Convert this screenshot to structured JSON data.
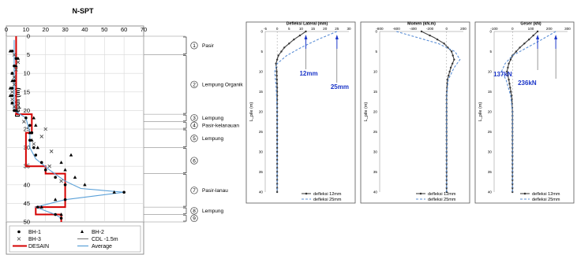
{
  "colors": {
    "desain": "#d40000",
    "average": "#5aa0d8",
    "profile": "#000000",
    "deflection_25": "#5b8fd6",
    "deflection_12": "#444444",
    "annotation": "#1a35c8",
    "guide": "#8a8a8a"
  },
  "chart_data": [
    {
      "type": "scatter",
      "title": "N-SPT",
      "ylabel": "Depth (m)",
      "xlim": [
        0,
        70
      ],
      "ylim": [
        50,
        0
      ],
      "xticks": [
        0,
        10,
        20,
        30,
        40,
        50,
        60,
        70
      ],
      "yticks": [
        0,
        5,
        10,
        15,
        20,
        25,
        30,
        35,
        40,
        45,
        50
      ],
      "grid": true,
      "legend_position": "bottom",
      "legend": [
        "BH-1",
        "BH-2",
        "BH-3",
        "CDL -1.5m",
        "DESAIN",
        "Average"
      ],
      "series": [
        {
          "name": "BH-1",
          "marker": "dot",
          "points": [
            [
              3,
              4
            ],
            [
              5,
              6
            ],
            [
              4,
              8
            ],
            [
              3,
              10
            ],
            [
              4,
              12
            ],
            [
              3,
              14
            ],
            [
              3,
              16
            ],
            [
              3,
              18
            ],
            [
              4,
              20
            ],
            [
              10,
              22
            ],
            [
              12,
              24
            ],
            [
              13,
              26
            ],
            [
              12,
              28
            ],
            [
              14,
              30
            ],
            [
              15,
              32
            ],
            [
              18,
              34
            ],
            [
              20,
              36
            ],
            [
              25,
              38
            ],
            [
              30,
              40
            ],
            [
              60,
              42
            ],
            [
              30,
              44
            ],
            [
              16,
              46
            ],
            [
              25,
              48
            ],
            [
              28,
              49
            ]
          ]
        },
        {
          "name": "BH-2",
          "marker": "triangle",
          "points": [
            [
              2,
              4
            ],
            [
              6,
              6
            ],
            [
              5,
              8
            ],
            [
              3,
              10
            ],
            [
              3,
              12
            ],
            [
              2,
              14
            ],
            [
              2,
              16
            ],
            [
              3,
              18
            ],
            [
              5,
              20
            ],
            [
              14,
              22
            ],
            [
              15,
              24
            ],
            [
              12,
              26
            ],
            [
              13,
              28
            ],
            [
              16,
              30
            ],
            [
              33,
              32
            ],
            [
              28,
              34
            ],
            [
              30,
              36
            ],
            [
              35,
              38
            ],
            [
              40,
              40
            ],
            [
              55,
              42
            ],
            [
              25,
              44
            ],
            [
              18,
              46
            ],
            [
              28,
              48
            ]
          ]
        },
        {
          "name": "BH-3",
          "marker": "x",
          "points": [
            [
              4,
              5
            ],
            [
              6,
              7
            ],
            [
              5,
              9
            ],
            [
              4,
              11
            ],
            [
              4,
              13
            ],
            [
              3,
              15
            ],
            [
              3,
              17
            ],
            [
              4,
              19
            ],
            [
              9,
              23
            ],
            [
              20,
              25
            ],
            [
              18,
              27
            ],
            [
              14,
              29
            ],
            [
              23,
              31
            ],
            [
              22,
              35
            ],
            [
              28,
              39
            ]
          ]
        },
        {
          "name": "DESAIN",
          "style": "step",
          "path": [
            [
              5,
              0
            ],
            [
              5,
              21
            ],
            [
              13,
              21
            ],
            [
              13,
              26
            ],
            [
              10,
              26
            ],
            [
              10,
              35
            ],
            [
              20,
              35
            ],
            [
              20,
              37
            ],
            [
              30,
              37
            ],
            [
              30,
              46
            ],
            [
              15,
              46
            ],
            [
              15,
              48
            ],
            [
              28,
              48
            ],
            [
              28,
              50
            ]
          ]
        },
        {
          "name": "Average",
          "style": "line",
          "path": [
            [
              4,
              1
            ],
            [
              4,
              20
            ],
            [
              10,
              22
            ],
            [
              12,
              26
            ],
            [
              12,
              30
            ],
            [
              15,
              33
            ],
            [
              22,
              36
            ],
            [
              30,
              39
            ],
            [
              38,
              41
            ],
            [
              60,
              42
            ],
            [
              30,
              44
            ],
            [
              15,
              46
            ],
            [
              25,
              48
            ],
            [
              28,
              49
            ]
          ]
        }
      ],
      "layers": [
        {
          "id": "1",
          "label": "Pasir",
          "depth": [
            0,
            5
          ]
        },
        {
          "id": "2",
          "label": "Lempung Organik",
          "depth": [
            5,
            21
          ]
        },
        {
          "id": "3",
          "label": "Lempung",
          "depth": [
            21,
            23
          ]
        },
        {
          "id": "4",
          "label": "Pasir-kelanauan",
          "depth": [
            23,
            25
          ]
        },
        {
          "id": "5",
          "label": "Lempung",
          "depth": [
            25,
            30
          ]
        },
        {
          "id": "6",
          "label": "",
          "depth": [
            30,
            37
          ]
        },
        {
          "id": "7",
          "label": "Pasir-lanau",
          "depth": [
            37,
            46
          ]
        },
        {
          "id": "8",
          "label": "Lempung",
          "depth": [
            46,
            48
          ]
        },
        {
          "id": "9",
          "label": "",
          "depth": [
            48,
            50
          ]
        }
      ]
    },
    {
      "type": "line",
      "title": "Defleksi Lateral (mm)",
      "ylabel": "L_pile (m)",
      "xlim": [
        -5,
        30
      ],
      "ylim": [
        40,
        0
      ],
      "xticks": [
        -5,
        0,
        5,
        10,
        15,
        20,
        25,
        30
      ],
      "yticks": [
        0,
        5,
        10,
        15,
        20,
        25,
        30,
        35,
        40
      ],
      "legend_position": "bottom-right",
      "annotations": [
        {
          "text": "12mm",
          "x": 12,
          "y": 2
        },
        {
          "text": "25mm",
          "x": 25,
          "y": 2
        }
      ],
      "series": [
        {
          "name": "defleksi 12mm",
          "x": [
            12,
            7,
            3,
            0.5,
            -0.5,
            -0.2,
            0,
            0,
            0
          ],
          "y": [
            0,
            2,
            4,
            6,
            8,
            10,
            14,
            20,
            40
          ]
        },
        {
          "name": "defleksi 25mm",
          "x": [
            25,
            17,
            10,
            4,
            0,
            -1,
            -0.4,
            0,
            0
          ],
          "y": [
            0,
            2,
            4,
            6,
            8,
            10,
            14,
            20,
            40
          ]
        }
      ]
    },
    {
      "type": "line",
      "title": "Momen (kN.m)",
      "ylabel": "L_pile (m)",
      "xlim": [
        -800,
        200
      ],
      "ylim": [
        40,
        0
      ],
      "xticks": [
        -800,
        -600,
        -400,
        -200,
        0,
        200
      ],
      "yticks": [
        0,
        5,
        10,
        15,
        20,
        25,
        30,
        35,
        40
      ],
      "legend_position": "bottom-right",
      "series": [
        {
          "name": "defleksi 12mm",
          "x": [
            -300,
            -150,
            -30,
            60,
            90,
            50,
            10,
            0,
            0
          ],
          "y": [
            0,
            1.5,
            3,
            5,
            7,
            9,
            12,
            16,
            40
          ]
        },
        {
          "name": "defleksi 25mm",
          "x": [
            -600,
            -350,
            -100,
            100,
            160,
            90,
            20,
            0,
            0
          ],
          "y": [
            0,
            1.5,
            3,
            5,
            7,
            9,
            12,
            16,
            40
          ]
        }
      ]
    },
    {
      "type": "line",
      "title": "Geser (kN)",
      "ylabel": "L_pile (m)",
      "xlim": [
        -100,
        300
      ],
      "ylim": [
        40,
        0
      ],
      "xticks": [
        -100,
        0,
        100,
        200,
        300
      ],
      "yticks": [
        0,
        5,
        10,
        15,
        20,
        25,
        30,
        35,
        40
      ],
      "legend_position": "bottom-right",
      "annotations": [
        {
          "text": "137kN",
          "x": 137,
          "y": 2
        },
        {
          "text": "236kN",
          "x": 236,
          "y": 2
        }
      ],
      "series": [
        {
          "name": "defleksi 12mm",
          "x": [
            137,
            90,
            40,
            0,
            -20,
            -30,
            -20,
            -5,
            0,
            0
          ],
          "y": [
            0,
            2,
            4,
            6,
            8,
            10,
            12,
            16,
            20,
            40
          ]
        },
        {
          "name": "defleksi 25mm",
          "x": [
            236,
            160,
            80,
            0,
            -40,
            -60,
            -35,
            -10,
            0,
            0
          ],
          "y": [
            0,
            2,
            4,
            6,
            8,
            10,
            12,
            16,
            20,
            40
          ]
        }
      ]
    }
  ]
}
